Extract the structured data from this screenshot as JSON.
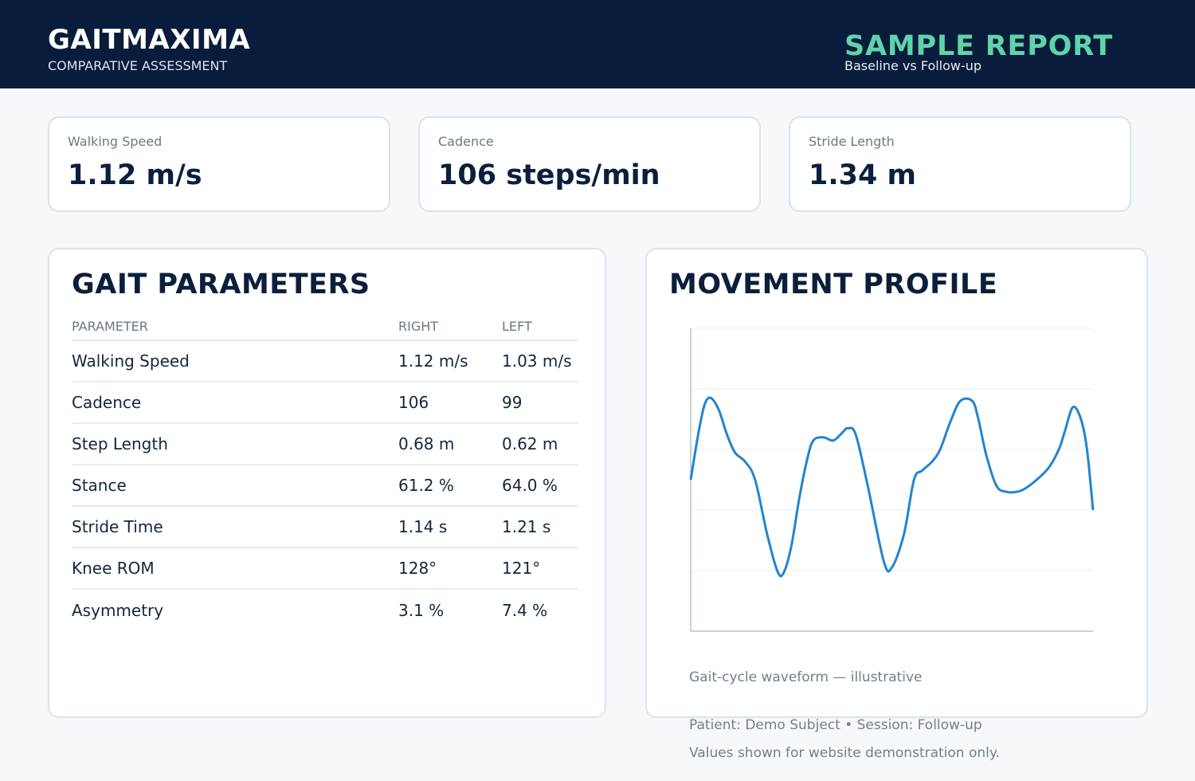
{
  "header": {
    "brand": "GAITMAXIMA",
    "brand_subtitle": "COMPARATIVE ASSESSMENT",
    "report_title": "SAMPLE REPORT",
    "report_subtitle": "Baseline vs Follow-up"
  },
  "kpis": [
    {
      "label": "Walking Speed",
      "value": "1.12 m/s"
    },
    {
      "label": "Cadence",
      "value": "106 steps/min"
    },
    {
      "label": "Stride Length",
      "value": "1.34 m"
    }
  ],
  "gait_parameters": {
    "title": "GAIT PARAMETERS",
    "columns": [
      "PARAMETER",
      "RIGHT",
      "LEFT"
    ],
    "rows": [
      [
        "Walking Speed",
        "1.12 m/s",
        "1.03 m/s"
      ],
      [
        "Cadence",
        "106",
        "99"
      ],
      [
        "Step Length",
        "0.68 m",
        "0.62 m"
      ],
      [
        "Stance",
        "61.2 %",
        "64.0 %"
      ],
      [
        "Stride Time",
        "1.14 s",
        "1.21 s"
      ],
      [
        "Knee ROM",
        "128°",
        "121°"
      ],
      [
        "Asymmetry",
        "3.1 %",
        "7.4 %"
      ]
    ]
  },
  "movement_profile": {
    "title": "MOVEMENT PROFILE",
    "caption": "Gait-cycle waveform — illustrative",
    "chart_data": {
      "type": "line",
      "grid": true,
      "ylim": [
        0,
        5
      ],
      "series_color": "#2384cf",
      "x": [
        0,
        0.02,
        0.035,
        0.05,
        0.07,
        0.09,
        0.11,
        0.135,
        0.16,
        0.19,
        0.215,
        0.23,
        0.25,
        0.27,
        0.29,
        0.305,
        0.33,
        0.355,
        0.38,
        0.39,
        0.41,
        0.44,
        0.48,
        0.5,
        0.53,
        0.555,
        0.575,
        0.6,
        0.62,
        0.645,
        0.67,
        0.7,
        0.715,
        0.735,
        0.76,
        0.785,
        0.81,
        0.83,
        0.86,
        0.89,
        0.915,
        0.93,
        0.95,
        0.97,
        0.985,
        1.0
      ],
      "y": [
        2.5,
        3.3,
        3.75,
        3.85,
        3.65,
        3.25,
        2.95,
        2.8,
        2.5,
        1.6,
        1.0,
        0.95,
        1.4,
        2.2,
        2.85,
        3.15,
        3.2,
        3.15,
        3.3,
        3.35,
        3.25,
        2.4,
        1.15,
        1.05,
        1.6,
        2.5,
        2.65,
        2.8,
        3.0,
        3.45,
        3.8,
        3.8,
        3.5,
        2.9,
        2.4,
        2.3,
        2.3,
        2.35,
        2.5,
        2.7,
        3.0,
        3.3,
        3.7,
        3.5,
        3.0,
        2.0
      ]
    }
  },
  "footer": {
    "session_line": "Patient: Demo Subject  •  Session: Follow-up",
    "disclaimer": "Values shown for website demonstration only."
  }
}
